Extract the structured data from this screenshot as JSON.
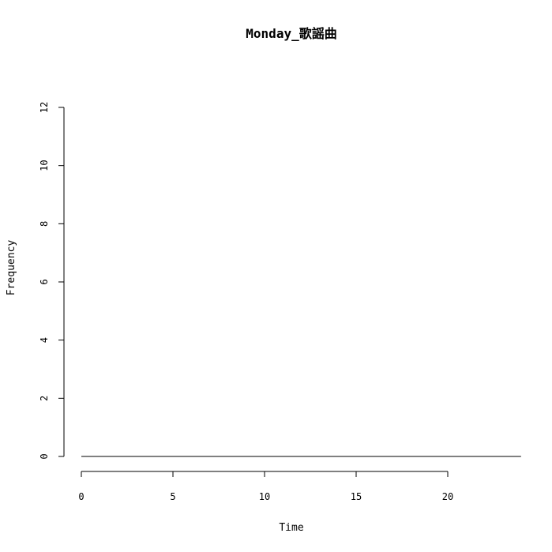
{
  "chart_data": {
    "type": "line",
    "title": "Monday_歌謡曲",
    "xlabel": "Time",
    "ylabel": "Frequency",
    "xlim": [
      0,
      24
    ],
    "ylim": [
      0,
      12
    ],
    "x_ticks": [
      0,
      5,
      10,
      15,
      20
    ],
    "y_ticks": [
      0,
      2,
      4,
      6,
      8,
      10,
      12
    ],
    "grid": false,
    "series": [
      {
        "x": [
          0,
          24
        ],
        "y": [
          0,
          0
        ],
        "color": "#000000"
      }
    ]
  }
}
